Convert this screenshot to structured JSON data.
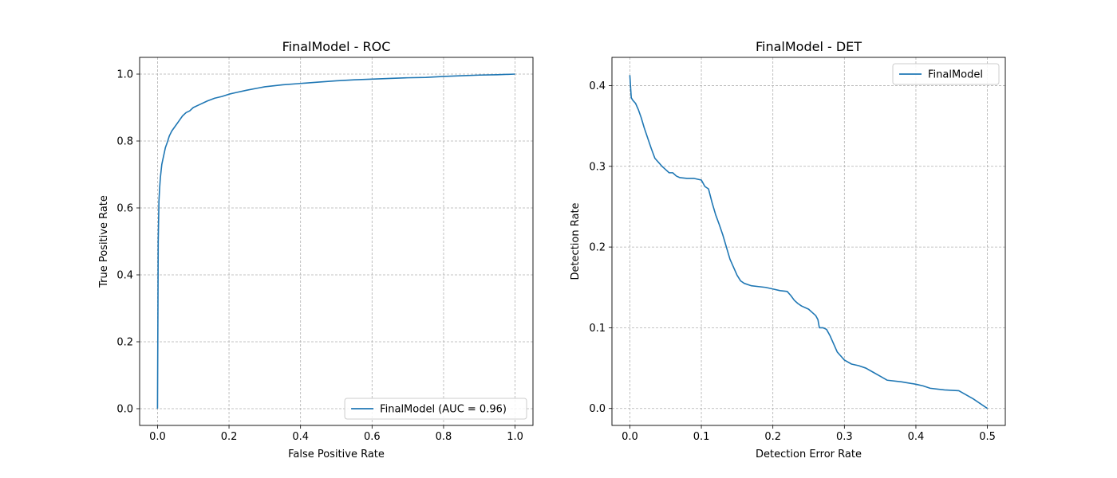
{
  "chart_data": [
    {
      "type": "line",
      "title": "FinalModel - ROC",
      "xlabel": "False Positive Rate",
      "ylabel": "True Positive Rate",
      "xlim": [
        -0.05,
        1.05
      ],
      "ylim": [
        -0.05,
        1.05
      ],
      "xticks": [
        0.0,
        0.2,
        0.4,
        0.6,
        0.8,
        1.0
      ],
      "yticks": [
        0.0,
        0.2,
        0.4,
        0.6,
        0.8,
        1.0
      ],
      "xtick_labels": [
        "0.0",
        "0.2",
        "0.4",
        "0.6",
        "0.8",
        "1.0"
      ],
      "ytick_labels": [
        "0.0",
        "0.2",
        "0.4",
        "0.6",
        "0.8",
        "1.0"
      ],
      "grid": true,
      "legend_position": "lower-right",
      "series": [
        {
          "name": "FinalModel (AUC = 0.96)",
          "color": "#1f77b4",
          "x": [
            0.0,
            0.002,
            0.004,
            0.006,
            0.008,
            0.01,
            0.012,
            0.015,
            0.018,
            0.022,
            0.027,
            0.033,
            0.04,
            0.05,
            0.06,
            0.07,
            0.08,
            0.09,
            0.1,
            0.12,
            0.14,
            0.16,
            0.18,
            0.2,
            0.22,
            0.25,
            0.28,
            0.3,
            0.35,
            0.4,
            0.45,
            0.5,
            0.55,
            0.6,
            0.65,
            0.7,
            0.75,
            0.8,
            0.85,
            0.9,
            0.95,
            1.0
          ],
          "y": [
            0.0,
            0.5,
            0.62,
            0.66,
            0.69,
            0.71,
            0.73,
            0.745,
            0.76,
            0.78,
            0.795,
            0.815,
            0.83,
            0.845,
            0.86,
            0.875,
            0.885,
            0.89,
            0.9,
            0.91,
            0.92,
            0.928,
            0.933,
            0.94,
            0.945,
            0.952,
            0.958,
            0.962,
            0.968,
            0.972,
            0.976,
            0.98,
            0.983,
            0.985,
            0.987,
            0.989,
            0.99,
            0.993,
            0.995,
            0.997,
            0.998,
            1.0
          ]
        }
      ]
    },
    {
      "type": "line",
      "title": "FinalModel - DET",
      "xlabel": "Detection Error Rate",
      "ylabel": "Detection Rate",
      "xlim": [
        -0.025,
        0.525
      ],
      "ylim": [
        -0.021,
        0.435
      ],
      "xticks": [
        0.0,
        0.1,
        0.2,
        0.3,
        0.4,
        0.5
      ],
      "yticks": [
        0.0,
        0.1,
        0.2,
        0.3,
        0.4
      ],
      "xtick_labels": [
        "0.0",
        "0.1",
        "0.2",
        "0.3",
        "0.4",
        "0.5"
      ],
      "ytick_labels": [
        "0.0",
        "0.1",
        "0.2",
        "0.3",
        "0.4"
      ],
      "grid": true,
      "legend_position": "upper-right",
      "series": [
        {
          "name": "FinalModel",
          "color": "#1f77b4",
          "x": [
            0.0,
            0.002,
            0.004,
            0.008,
            0.012,
            0.016,
            0.02,
            0.025,
            0.03,
            0.035,
            0.04,
            0.045,
            0.05,
            0.055,
            0.06,
            0.065,
            0.07,
            0.08,
            0.09,
            0.1,
            0.105,
            0.11,
            0.115,
            0.12,
            0.125,
            0.13,
            0.135,
            0.14,
            0.145,
            0.15,
            0.155,
            0.16,
            0.17,
            0.18,
            0.19,
            0.2,
            0.21,
            0.22,
            0.225,
            0.23,
            0.235,
            0.24,
            0.25,
            0.255,
            0.26,
            0.263,
            0.265,
            0.27,
            0.275,
            0.28,
            0.285,
            0.29,
            0.295,
            0.3,
            0.31,
            0.32,
            0.33,
            0.34,
            0.35,
            0.36,
            0.38,
            0.4,
            0.41,
            0.42,
            0.44,
            0.46,
            0.48,
            0.5
          ],
          "y": [
            0.413,
            0.385,
            0.382,
            0.378,
            0.37,
            0.36,
            0.348,
            0.335,
            0.322,
            0.31,
            0.305,
            0.3,
            0.296,
            0.292,
            0.292,
            0.288,
            0.286,
            0.285,
            0.285,
            0.283,
            0.275,
            0.272,
            0.255,
            0.24,
            0.228,
            0.215,
            0.2,
            0.185,
            0.175,
            0.165,
            0.158,
            0.155,
            0.152,
            0.151,
            0.15,
            0.148,
            0.146,
            0.145,
            0.14,
            0.134,
            0.13,
            0.127,
            0.123,
            0.119,
            0.115,
            0.11,
            0.1,
            0.1,
            0.098,
            0.09,
            0.08,
            0.07,
            0.065,
            0.06,
            0.055,
            0.053,
            0.05,
            0.045,
            0.04,
            0.035,
            0.033,
            0.03,
            0.028,
            0.025,
            0.023,
            0.022,
            0.012,
            0.0
          ]
        }
      ]
    }
  ]
}
